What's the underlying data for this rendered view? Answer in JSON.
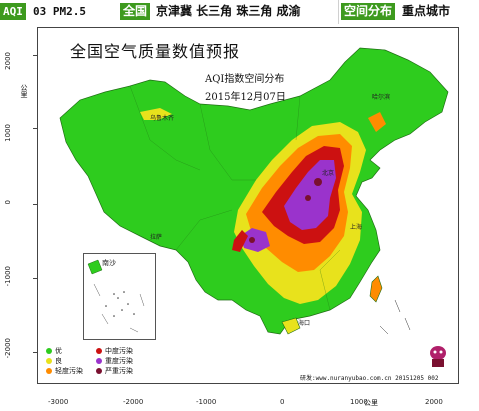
{
  "nav": {
    "aqi": "AQI",
    "o3_pm25": "03 PM2.5",
    "national": "全国",
    "regions": "京津冀 长三角 珠三角 成渝",
    "spatial": "空间分布",
    "key_cities": "重点城市"
  },
  "map": {
    "title": "全国空气质量数值预报",
    "subtitle": "AQI指数空间分布",
    "date": "2015年12月07日",
    "unit_y": "公里",
    "unit_x": "公里",
    "inset_label": "南沙",
    "y_ticks": [
      "2000",
      "1000",
      "0",
      "-1000",
      "-2000"
    ],
    "x_ticks": [
      "-3000",
      "-2000",
      "-1000",
      "0",
      "1000",
      "2000"
    ],
    "footer": "研发:www.nuranyubao.com.cn 20151205 002",
    "cities": [
      {
        "name": "乌鲁木齐"
      },
      {
        "name": "哈尔滨"
      },
      {
        "name": "北京"
      },
      {
        "name": "上海"
      },
      {
        "name": "拉萨"
      },
      {
        "name": "海口"
      }
    ]
  },
  "legend": {
    "items": [
      {
        "label": "优",
        "color": "#2ecc1e"
      },
      {
        "label": "中度污染",
        "color": "#cc1111"
      },
      {
        "label": "良",
        "color": "#e8e21c"
      },
      {
        "label": "重度污染",
        "color": "#9a33cc"
      },
      {
        "label": "轻度污染",
        "color": "#ff8c00"
      },
      {
        "label": "严重污染",
        "color": "#7a1030"
      }
    ]
  },
  "colors": {
    "nav_green": "#3d9a1e",
    "good": "#2ecc1e",
    "moderate": "#e8e21c",
    "light": "#ff8c00",
    "medium": "#cc1111",
    "heavy": "#9a33cc",
    "severe": "#7a1030"
  }
}
